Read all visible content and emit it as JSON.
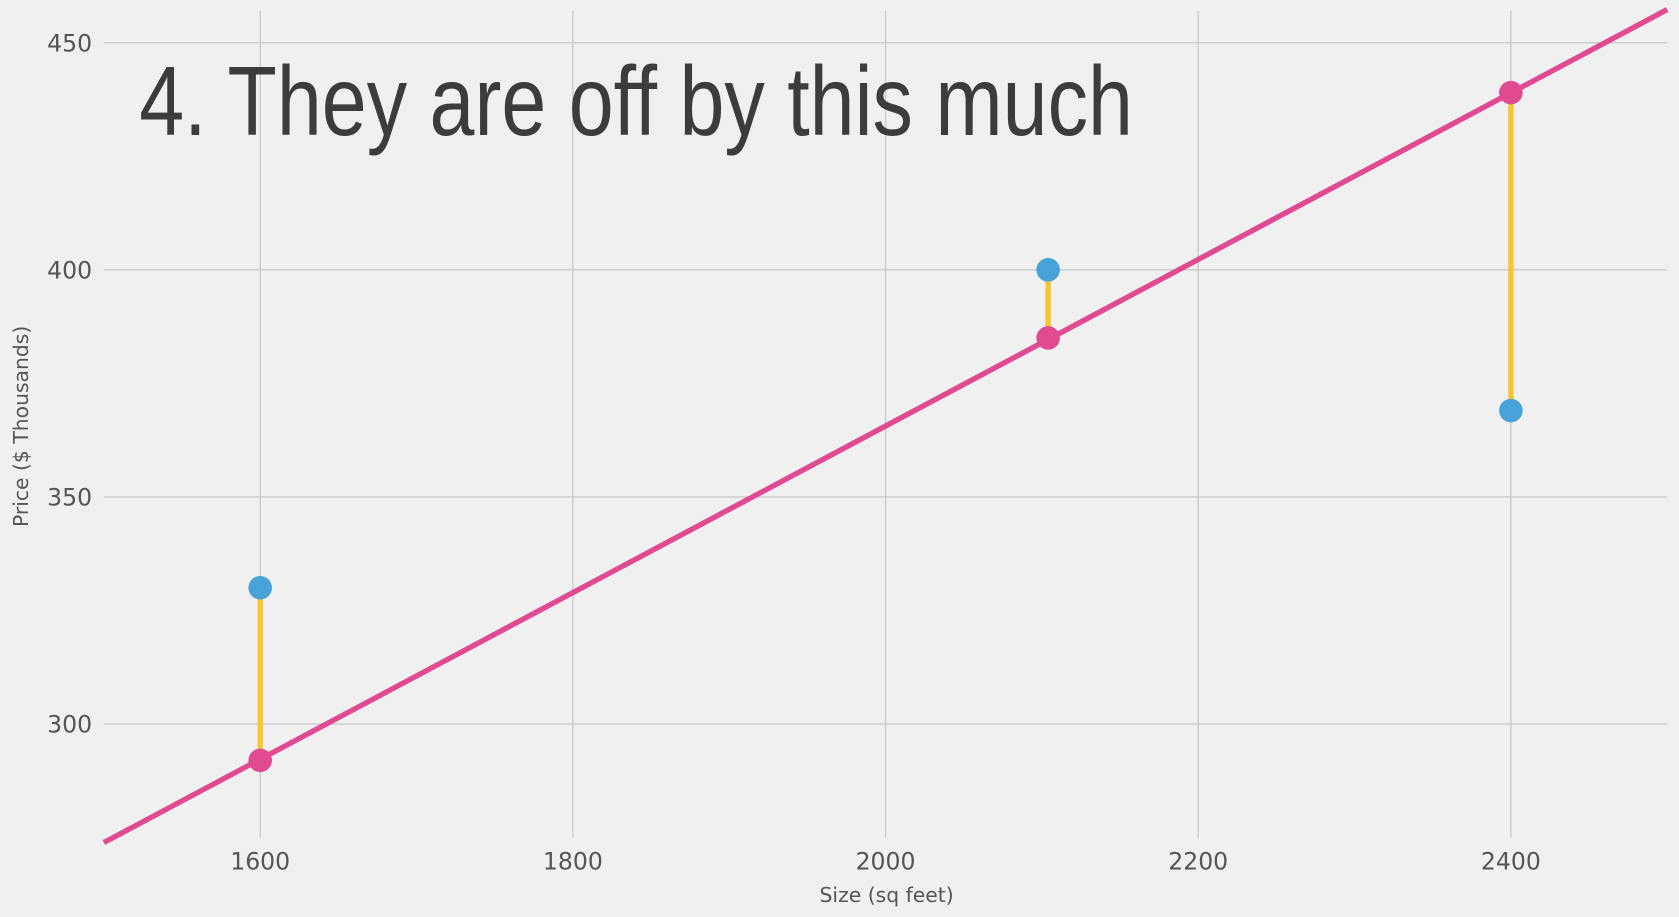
{
  "chart_data": {
    "type": "scatter",
    "title": "4. They are off by this much",
    "xlabel": "Size (sq feet)",
    "ylabel": "Price ($ Thousands)",
    "xlim": [
      1500,
      2500
    ],
    "ylim": [
      275,
      457
    ],
    "xticks": [
      1600,
      1800,
      2000,
      2200,
      2400
    ],
    "yticks": [
      300,
      350,
      400,
      450
    ],
    "grid": true,
    "points": [
      {
        "x": 1600,
        "actual": 330,
        "predicted": 292
      },
      {
        "x": 2104,
        "actual": 400,
        "predicted": 385
      },
      {
        "x": 2400,
        "actual": 369,
        "predicted": 439
      }
    ],
    "fit_line": {
      "slope": 0.1834,
      "intercept": -1.2
    },
    "colors": {
      "actual": "#47a2d8",
      "predicted": "#df4a91",
      "line": "#df4a91",
      "error": "#f8c62c",
      "grid": "#cbcbcb",
      "background": "#f0f0f0"
    }
  }
}
